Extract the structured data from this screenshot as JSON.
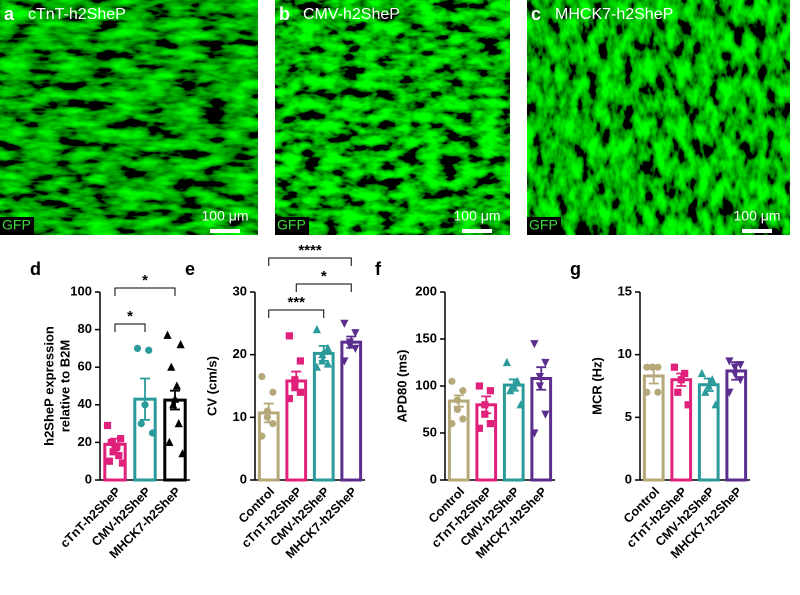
{
  "image_panels": [
    {
      "label": "a",
      "title": "cTnT-h2SheP",
      "channel": "GFP",
      "scale": "100 μm"
    },
    {
      "label": "b",
      "title": "CMV-h2SheP",
      "channel": "GFP",
      "scale": "100 μm"
    },
    {
      "label": "c",
      "title": "MHCK7-h2SheP",
      "channel": "GFP",
      "scale": "100 μm"
    }
  ],
  "chart_data": [
    {
      "type": "bar",
      "panel_label": "d",
      "ylabel": [
        "h2SheP expression",
        "relative to B2M"
      ],
      "categories": [
        "cTnT-h2SheP",
        "CMV-h2SheP",
        "MHCK7-h2SheP"
      ],
      "values": [
        19,
        43,
        42.5
      ],
      "errors": [
        3,
        11,
        5
      ],
      "colors": [
        "#e0207a",
        "#2a9a9a",
        "#000000"
      ],
      "markers": [
        "square",
        "circle",
        "triangle-up"
      ],
      "points": [
        [
          29,
          22,
          20,
          18,
          17,
          15,
          13,
          10,
          9
        ],
        [
          70,
          69,
          40,
          30,
          25
        ],
        [
          77,
          72,
          60,
          50,
          43,
          40,
          30,
          20,
          14
        ]
      ],
      "ylim": [
        0,
        100
      ],
      "yticks": [
        0,
        20,
        40,
        60,
        80,
        100
      ],
      "significance": [
        {
          "from": 0,
          "to": 2,
          "label": "*"
        },
        {
          "from": 0,
          "to": 1,
          "label": "*"
        }
      ]
    },
    {
      "type": "bar",
      "panel_label": "e",
      "ylabel": [
        "CV (cm/s)"
      ],
      "categories": [
        "Control",
        "cTnT-h2SheP",
        "CMV-h2SheP",
        "MHCK7-h2SheP"
      ],
      "values": [
        10.7,
        15.8,
        20.2,
        22
      ],
      "errors": [
        1.5,
        1.5,
        1.2,
        0.9
      ],
      "colors": [
        "#b5a97a",
        "#e0207a",
        "#2a9a9a",
        "#5b2d8e"
      ],
      "markers": [
        "circle",
        "square",
        "triangle-up",
        "triangle-down"
      ],
      "points": [
        [
          16.5,
          14,
          11,
          10,
          9,
          7
        ],
        [
          23,
          19,
          16,
          15,
          14,
          13
        ],
        [
          24,
          21,
          20,
          19,
          18.5,
          18
        ],
        [
          25,
          23.5,
          22,
          21.5,
          21,
          19
        ]
      ],
      "ylim": [
        0,
        30
      ],
      "yticks": [
        0,
        10,
        20,
        30
      ],
      "significance": [
        {
          "from": 0,
          "to": 3,
          "label": "****"
        },
        {
          "from": 1,
          "to": 3,
          "label": "*"
        },
        {
          "from": 0,
          "to": 2,
          "label": "***"
        }
      ]
    },
    {
      "type": "bar",
      "panel_label": "f",
      "ylabel": [
        "APD80 (ms)"
      ],
      "categories": [
        "Control",
        "cTnT-h2SheP",
        "CMV-h2SheP",
        "MHCK7-h2SheP"
      ],
      "values": [
        84,
        80,
        101,
        108
      ],
      "errors": [
        6,
        9,
        6,
        12
      ],
      "colors": [
        "#b5a97a",
        "#e0207a",
        "#2a9a9a",
        "#5b2d8e"
      ],
      "markers": [
        "circle",
        "square",
        "triangle-up",
        "triangle-down"
      ],
      "points": [
        [
          105,
          95,
          85,
          75,
          65,
          60
        ],
        [
          100,
          95,
          80,
          70,
          60,
          55
        ],
        [
          125,
          105,
          100,
          95,
          80
        ],
        [
          145,
          125,
          110,
          100,
          70,
          50
        ]
      ],
      "ylim": [
        0,
        200
      ],
      "yticks": [
        0,
        50,
        100,
        150,
        200
      ],
      "significance": []
    },
    {
      "type": "bar",
      "panel_label": "g",
      "ylabel": [
        "MCR (Hz)"
      ],
      "categories": [
        "Control",
        "cTnT-h2SheP",
        "CMV-h2SheP",
        "MHCK7-h2SheP"
      ],
      "values": [
        8.3,
        8,
        7.6,
        8.7
      ],
      "errors": [
        0.6,
        0.5,
        0.5,
        0.7
      ],
      "colors": [
        "#b5a97a",
        "#e0207a",
        "#2a9a9a",
        "#5b2d8e"
      ],
      "markers": [
        "circle",
        "square",
        "triangle-up",
        "triangle-down"
      ],
      "points": [
        [
          9,
          9,
          9,
          9,
          7,
          7
        ],
        [
          9,
          8.5,
          8,
          7,
          6
        ],
        [
          8.5,
          8,
          7.5,
          7,
          6
        ],
        [
          9.5,
          9.2,
          9,
          8.5,
          8,
          7
        ]
      ],
      "ylim": [
        0,
        15
      ],
      "yticks": [
        0,
        5,
        10,
        15
      ],
      "significance": []
    }
  ]
}
